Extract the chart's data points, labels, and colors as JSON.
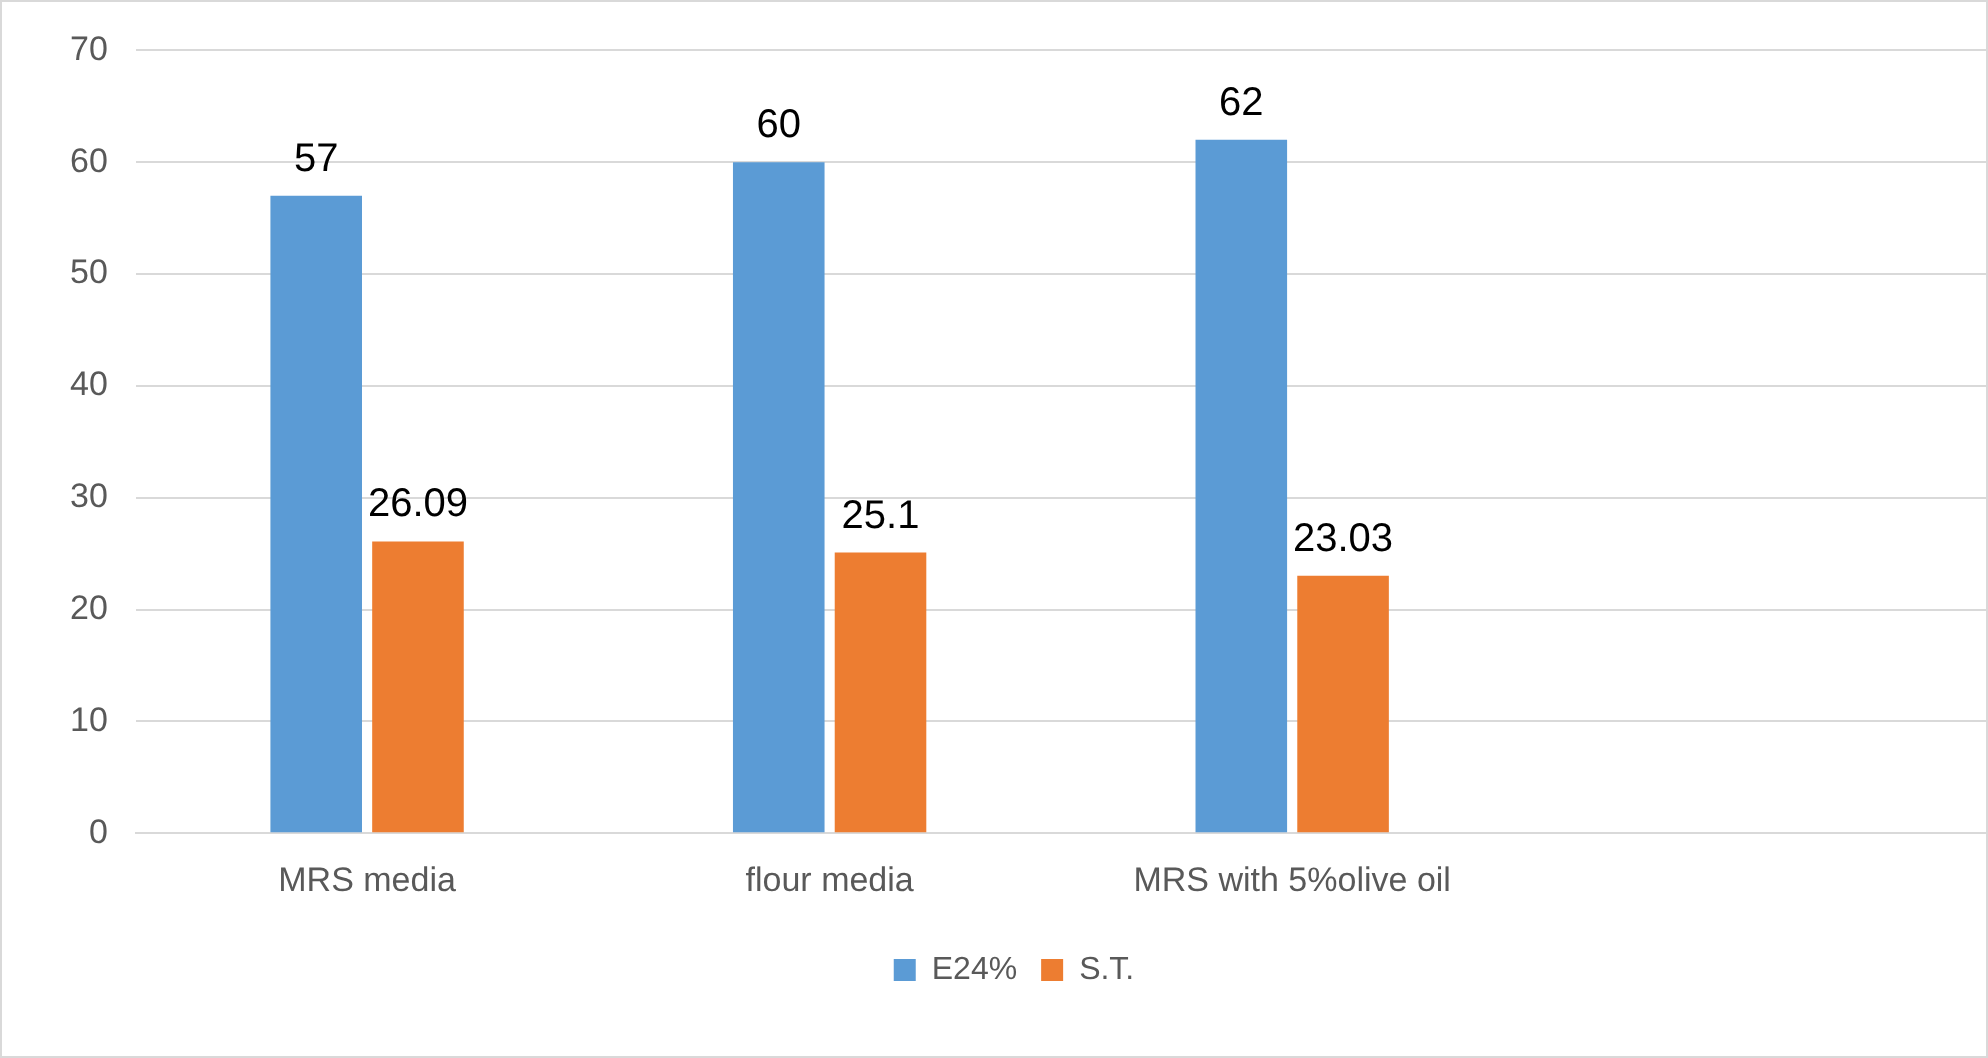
{
  "chart_data": {
    "type": "bar",
    "categories": [
      "MRS media",
      "flour media",
      "MRS with 5%olive oil",
      null
    ],
    "series": [
      {
        "name": "E24%",
        "color": "#5b9bd5",
        "values": [
          57,
          60,
          62,
          null
        ]
      },
      {
        "name": "S.T.",
        "color": "#ed7d31",
        "values": [
          26.09,
          25.1,
          23.03,
          null
        ]
      }
    ],
    "ylim": [
      0,
      70
    ],
    "yticks": [
      0,
      10,
      20,
      30,
      40,
      50,
      60,
      70
    ],
    "grid": "y",
    "legend": "bottom",
    "data_labels": true
  }
}
